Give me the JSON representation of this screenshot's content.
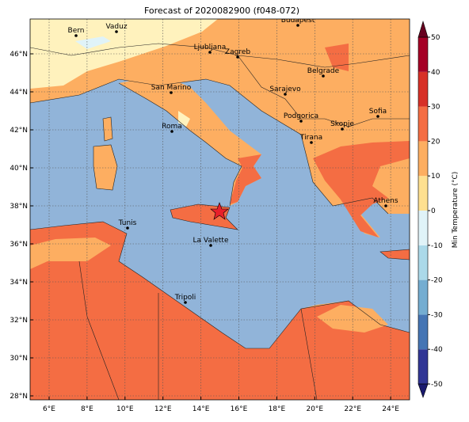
{
  "title": "Forecast of 2020082900 (f048-072)",
  "lon_ticks": [
    "6°E",
    "8°E",
    "10°E",
    "12°E",
    "14°E",
    "16°E",
    "18°E",
    "20°E",
    "22°E",
    "24°E"
  ],
  "lat_ticks": [
    "28°N",
    "30°N",
    "32°N",
    "34°N",
    "36°N",
    "38°N",
    "40°N",
    "42°N",
    "44°N",
    "46°N"
  ],
  "cities": [
    "Bern",
    "Vaduz",
    "Budapest",
    "Ljubljana",
    "Zagreb",
    "Belgrade",
    "San Marino",
    "Sarajevo",
    "Sofia",
    "Podgorica",
    "Skopje",
    "Roma",
    "Tirana",
    "Athens",
    "Tunis",
    "La Valette",
    "Tripoli"
  ],
  "colorbar": {
    "label": "Min Temperature (°C)",
    "ticks": [
      -50,
      -40,
      -30,
      -20,
      -10,
      0,
      10,
      20,
      30,
      40,
      50
    ]
  }
}
